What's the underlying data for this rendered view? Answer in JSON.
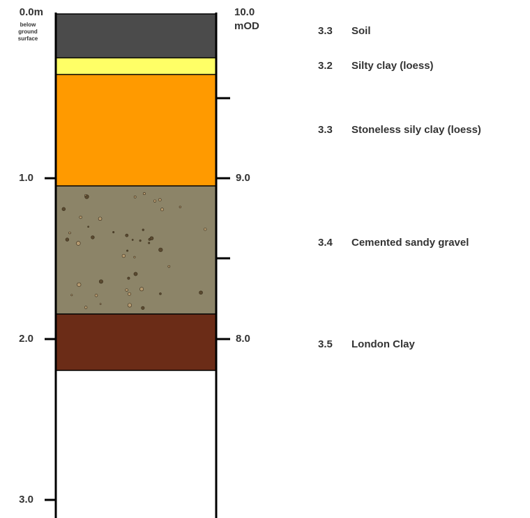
{
  "left_axis": {
    "top_label": "0.0m",
    "note": [
      "below",
      "ground",
      "surface"
    ],
    "labels": [
      "1.0",
      "2.0",
      "3.0"
    ]
  },
  "right_axis": {
    "top_label": "10.0",
    "unit": "mOD",
    "labels": [
      "9.0",
      "8.0"
    ]
  },
  "layers": [
    {
      "code": "3.3",
      "name": "Soil"
    },
    {
      "code": "3.2",
      "name": "Silty clay (loess)"
    },
    {
      "code": "3.3",
      "name": "Stoneless sily clay (loess)"
    },
    {
      "code": "3.4",
      "name": "Cemented sandy gravel"
    },
    {
      "code": "3.5",
      "name": "London Clay"
    }
  ]
}
